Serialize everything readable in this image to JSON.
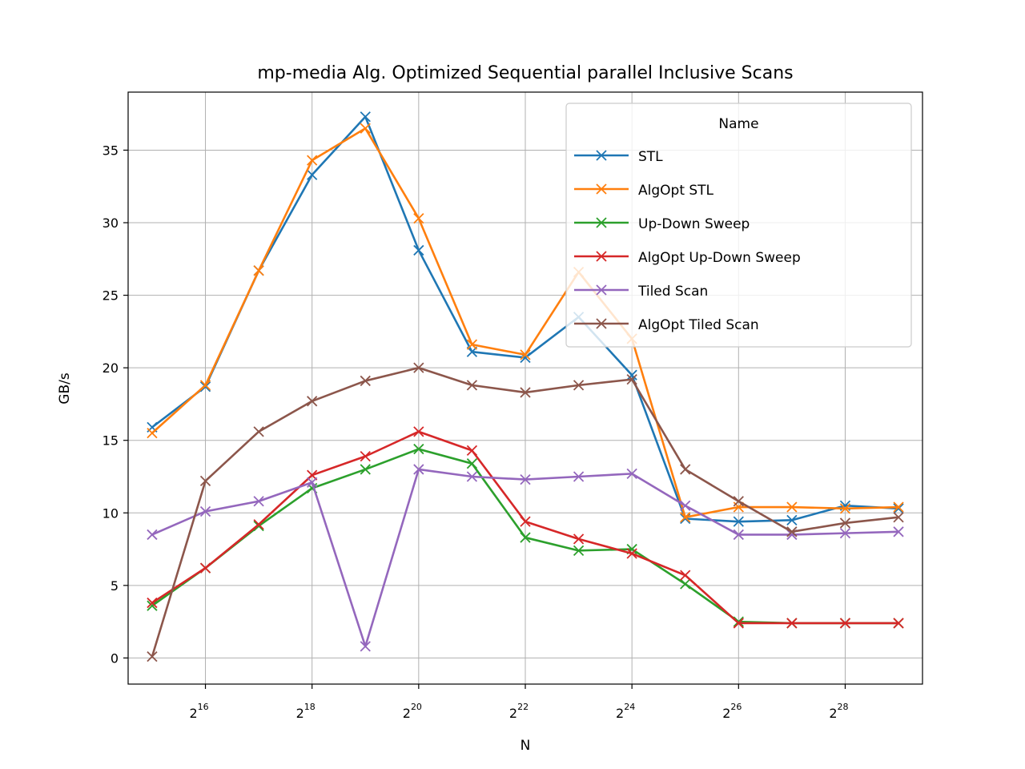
{
  "chart_data": {
    "type": "line",
    "title": "mp-media Alg. Optimized Sequential parallel Inclusive Scans",
    "xlabel": "N",
    "ylabel": "GB/s",
    "x_scale": "log2",
    "x": [
      15,
      16,
      17,
      18,
      19,
      20,
      21,
      22,
      23,
      24,
      25,
      26,
      27,
      28,
      29
    ],
    "x_ticks": [
      {
        "base": "2",
        "exp": "16"
      },
      {
        "base": "2",
        "exp": "18"
      },
      {
        "base": "2",
        "exp": "20"
      },
      {
        "base": "2",
        "exp": "22"
      },
      {
        "base": "2",
        "exp": "24"
      },
      {
        "base": "2",
        "exp": "26"
      },
      {
        "base": "2",
        "exp": "28"
      }
    ],
    "y_ticks": [
      "0",
      "5",
      "10",
      "15",
      "20",
      "25",
      "30",
      "35"
    ],
    "ylim": [
      -1.8,
      39.0
    ],
    "grid": true,
    "legend_title": "Name",
    "legend_position": "top-right",
    "series": [
      {
        "name": "STL",
        "color": "#1f77b4",
        "values": [
          15.9,
          18.7,
          26.7,
          33.3,
          37.3,
          28.1,
          21.1,
          20.7,
          23.5,
          19.5,
          9.6,
          9.4,
          9.5,
          10.5,
          10.3
        ]
      },
      {
        "name": "AlgOpt STL",
        "color": "#ff7f0e",
        "values": [
          15.5,
          18.8,
          26.7,
          34.3,
          36.5,
          30.3,
          21.6,
          20.9,
          26.6,
          22.0,
          9.7,
          10.4,
          10.4,
          10.3,
          10.4
        ]
      },
      {
        "name": "Up-Down Sweep",
        "color": "#2ca02c",
        "values": [
          3.6,
          6.2,
          9.1,
          11.7,
          13.0,
          14.4,
          13.4,
          8.3,
          7.4,
          7.5,
          5.1,
          2.5,
          2.4,
          2.4,
          2.4
        ]
      },
      {
        "name": "AlgOpt Up-Down Sweep",
        "color": "#d62728",
        "values": [
          3.8,
          6.2,
          9.2,
          12.6,
          13.9,
          15.6,
          14.3,
          9.4,
          8.2,
          7.2,
          5.7,
          2.4,
          2.4,
          2.4,
          2.4
        ]
      },
      {
        "name": "Tiled Scan",
        "color": "#9467bd",
        "values": [
          8.5,
          10.1,
          10.8,
          12.1,
          0.8,
          13.0,
          12.5,
          12.3,
          12.5,
          12.7,
          10.5,
          8.5,
          8.5,
          8.6,
          8.7
        ]
      },
      {
        "name": "AlgOpt Tiled Scan",
        "color": "#8c564b",
        "values": [
          0.1,
          12.2,
          15.6,
          17.7,
          19.1,
          20.0,
          18.8,
          18.3,
          18.8,
          19.2,
          13.0,
          10.8,
          8.7,
          9.3,
          9.7
        ]
      }
    ]
  }
}
